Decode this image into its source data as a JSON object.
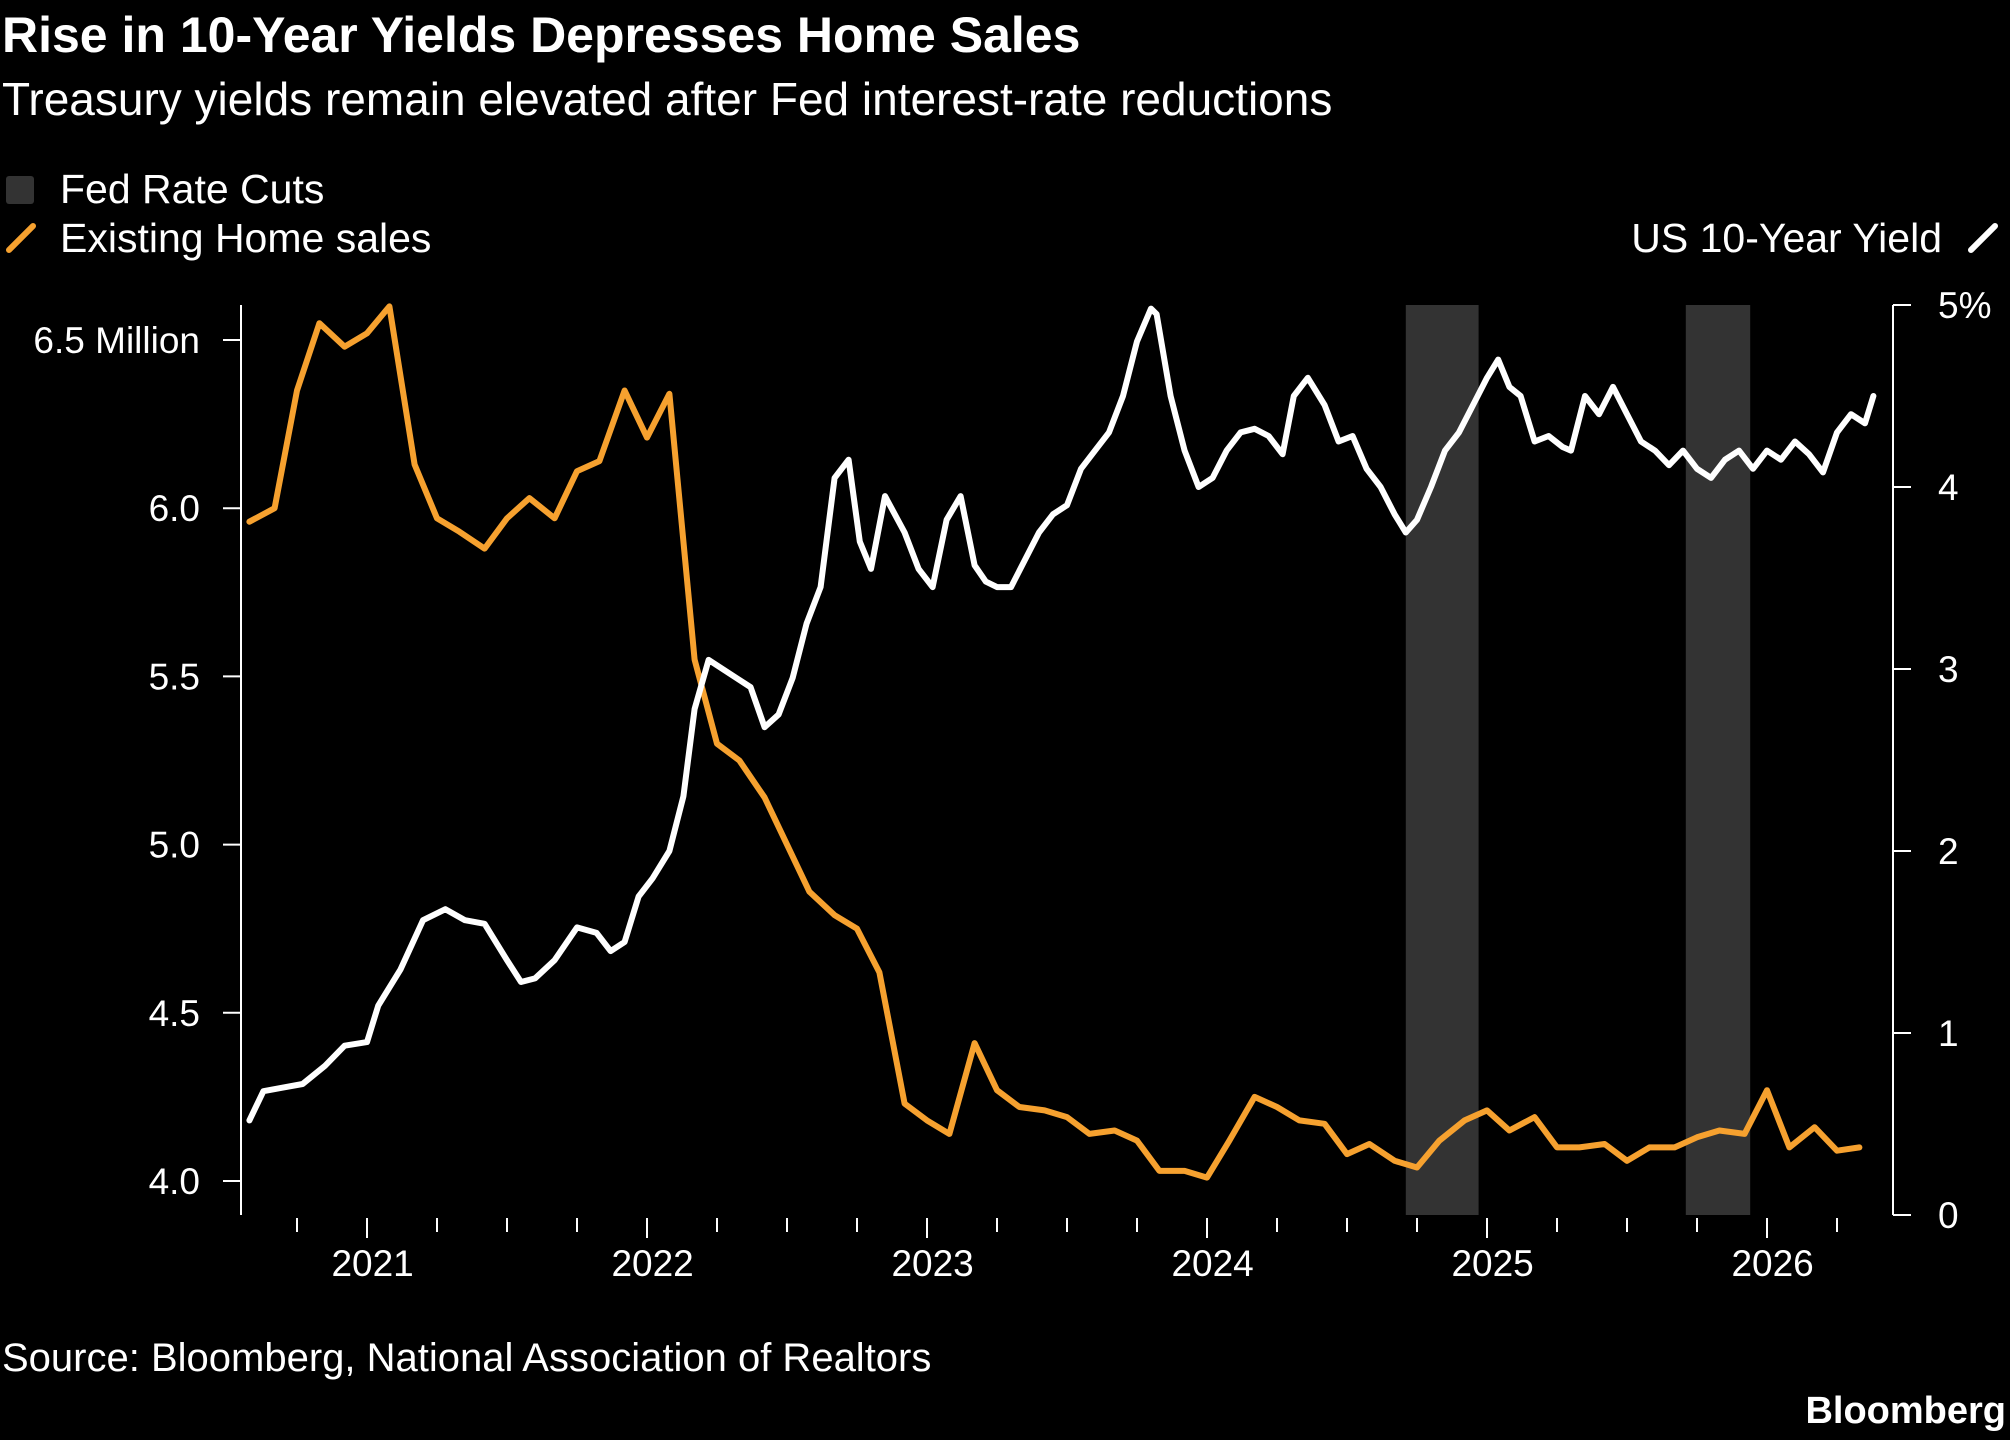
{
  "title": "Rise in 10-Year Yields Depresses Home Sales",
  "subtitle": "Treasury yields remain elevated after Fed interest-rate reductions",
  "source": "Source: Bloomberg, National Association of Realtors",
  "brand": "Bloomberg",
  "colors": {
    "background": "#000000",
    "sales": "#f6a12f",
    "yield": "#ffffff",
    "cuts": "#333333",
    "text": "#ffffff"
  },
  "chart_data": {
    "type": "line",
    "legend": {
      "cuts_label": "Fed Rate Cuts",
      "sales_label": "Existing Home sales",
      "yield_label": "US 10-Year Yield",
      "placement": "top"
    },
    "x_axis": {
      "range": [
        2020.55,
        2026.45
      ],
      "tick_labels": [
        "2021",
        "2022",
        "2023",
        "2024",
        "2025",
        "2026"
      ],
      "tick_values": [
        2021,
        2022,
        2023,
        2024,
        2025,
        2026
      ]
    },
    "left_axis": {
      "range": [
        3.9,
        6.6
      ],
      "ticks": [
        4.0,
        4.5,
        5.0,
        5.5,
        6.0,
        6.5
      ],
      "tick_labels": [
        "4.0",
        "4.5",
        "5.0",
        "5.5",
        "6.0",
        "6.5 Million"
      ]
    },
    "right_axis": {
      "range": [
        0,
        5
      ],
      "ticks": [
        0,
        1,
        2,
        3,
        4,
        5
      ],
      "tick_labels": [
        "0",
        "1",
        "2",
        "3",
        "4",
        "5%"
      ]
    },
    "shaded_periods": [
      [
        2024.71,
        2024.97
      ],
      [
        2025.71,
        2025.94
      ]
    ],
    "series": [
      {
        "name": "Existing Home sales",
        "axis": "left",
        "x": [
          2020.58,
          2020.67,
          2020.75,
          2020.83,
          2020.92,
          2021.0,
          2021.08,
          2021.17,
          2021.25,
          2021.33,
          2021.42,
          2021.5,
          2021.58,
          2021.67,
          2021.75,
          2021.83,
          2021.92,
          2022.0,
          2022.08,
          2022.17,
          2022.25,
          2022.33,
          2022.42,
          2022.5,
          2022.58,
          2022.67,
          2022.75,
          2022.83,
          2022.92,
          2023.0,
          2023.08,
          2023.17,
          2023.25,
          2023.33,
          2023.42,
          2023.5,
          2023.58,
          2023.67,
          2023.75,
          2023.83,
          2023.92,
          2024.0,
          2024.08,
          2024.17,
          2024.25,
          2024.33,
          2024.42,
          2024.5,
          2024.58,
          2024.67,
          2024.75,
          2024.83,
          2024.92,
          2025.0,
          2025.08,
          2025.17,
          2025.25,
          2025.33,
          2025.42,
          2025.5,
          2025.58,
          2025.67,
          2025.75,
          2025.83,
          2025.92,
          2026.0,
          2026.08,
          2026.17,
          2026.25,
          2026.33
        ],
        "values": [
          5.96,
          6.0,
          6.35,
          6.55,
          6.48,
          6.52,
          6.6,
          6.13,
          5.97,
          5.93,
          5.88,
          5.97,
          6.03,
          5.97,
          6.11,
          6.14,
          6.35,
          6.21,
          6.34,
          5.55,
          5.3,
          5.25,
          5.14,
          5.0,
          4.86,
          4.79,
          4.75,
          4.62,
          4.23,
          4.18,
          4.14,
          4.41,
          4.27,
          4.22,
          4.21,
          4.19,
          4.14,
          4.15,
          4.12,
          4.03,
          4.03,
          4.01,
          4.12,
          4.25,
          4.22,
          4.18,
          4.17,
          4.08,
          4.11,
          4.06,
          4.04,
          4.12,
          4.18,
          4.21,
          4.15,
          4.19,
          4.1,
          4.1,
          4.11,
          4.06,
          4.1,
          4.1,
          4.13,
          4.15,
          4.14,
          4.27,
          4.1,
          4.16,
          4.09,
          4.1
        ]
      },
      {
        "name": "US 10-Year Yield",
        "axis": "right",
        "x": [
          2020.58,
          2020.63,
          2020.7,
          2020.77,
          2020.85,
          2020.92,
          2021.0,
          2021.04,
          2021.12,
          2021.2,
          2021.28,
          2021.35,
          2021.42,
          2021.5,
          2021.55,
          2021.6,
          2021.67,
          2021.75,
          2021.82,
          2021.87,
          2021.92,
          2021.97,
          2022.02,
          2022.08,
          2022.13,
          2022.17,
          2022.22,
          2022.27,
          2022.32,
          2022.37,
          2022.42,
          2022.47,
          2022.52,
          2022.57,
          2022.62,
          2022.67,
          2022.72,
          2022.76,
          2022.8,
          2022.85,
          2022.92,
          2022.97,
          2023.02,
          2023.07,
          2023.12,
          2023.17,
          2023.21,
          2023.25,
          2023.3,
          2023.35,
          2023.4,
          2023.45,
          2023.5,
          2023.55,
          2023.6,
          2023.65,
          2023.7,
          2023.75,
          2023.8,
          2023.82,
          2023.87,
          2023.92,
          2023.97,
          2024.02,
          2024.07,
          2024.12,
          2024.17,
          2024.22,
          2024.27,
          2024.31,
          2024.36,
          2024.42,
          2024.47,
          2024.52,
          2024.57,
          2024.62,
          2024.67,
          2024.71,
          2024.75,
          2024.8,
          2024.85,
          2024.9,
          2024.95,
          2025.0,
          2025.04,
          2025.08,
          2025.12,
          2025.17,
          2025.22,
          2025.27,
          2025.3,
          2025.35,
          2025.4,
          2025.45,
          2025.5,
          2025.55,
          2025.6,
          2025.65,
          2025.7,
          2025.75,
          2025.8,
          2025.85,
          2025.9,
          2025.95,
          2026.0,
          2026.05,
          2026.1,
          2026.15,
          2026.2,
          2026.25,
          2026.3,
          2026.35,
          2026.38
        ],
        "values": [
          0.52,
          0.68,
          0.7,
          0.72,
          0.82,
          0.93,
          0.95,
          1.15,
          1.35,
          1.62,
          1.68,
          1.62,
          1.6,
          1.4,
          1.28,
          1.3,
          1.4,
          1.58,
          1.55,
          1.45,
          1.5,
          1.75,
          1.85,
          2.0,
          2.3,
          2.78,
          3.05,
          3.0,
          2.95,
          2.9,
          2.68,
          2.75,
          2.95,
          3.25,
          3.45,
          4.05,
          4.15,
          3.7,
          3.55,
          3.95,
          3.75,
          3.55,
          3.45,
          3.82,
          3.95,
          3.57,
          3.48,
          3.45,
          3.45,
          3.6,
          3.75,
          3.85,
          3.9,
          4.1,
          4.2,
          4.3,
          4.5,
          4.8,
          4.98,
          4.95,
          4.5,
          4.2,
          4.0,
          4.05,
          4.2,
          4.3,
          4.32,
          4.28,
          4.18,
          4.5,
          4.6,
          4.45,
          4.25,
          4.28,
          4.1,
          4.0,
          3.85,
          3.75,
          3.82,
          4.0,
          4.2,
          4.3,
          4.45,
          4.6,
          4.7,
          4.55,
          4.5,
          4.25,
          4.28,
          4.22,
          4.2,
          4.5,
          4.4,
          4.55,
          4.4,
          4.25,
          4.2,
          4.12,
          4.2,
          4.1,
          4.05,
          4.15,
          4.2,
          4.1,
          4.2,
          4.15,
          4.25,
          4.18,
          4.08,
          4.3,
          4.4,
          4.35,
          4.5
        ]
      }
    ]
  }
}
